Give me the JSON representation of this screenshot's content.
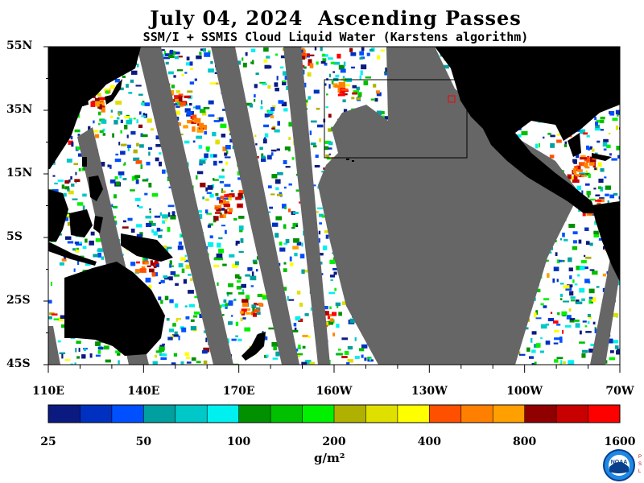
{
  "header": {
    "title": "July 04, 2024  Ascending Passes",
    "subtitle": "SSM/I + SSMIS Cloud Liquid Water (Karstens algorithm)"
  },
  "map": {
    "lat_labels": [
      "55N",
      "35N",
      "15N",
      "5S",
      "25S",
      "45S"
    ],
    "lon_labels": [
      "110E",
      "140E",
      "170E",
      "160W",
      "130W",
      "100W",
      "70W"
    ],
    "land_color": "#000000",
    "no_data_color": "#666666",
    "clear_sky_color": "#ffffff"
  },
  "colorbar": {
    "labels": [
      "25",
      "50",
      "100",
      "200",
      "400",
      "800",
      "1600"
    ],
    "units": "g/m²",
    "colors": [
      "#0a1a80",
      "#0030c0",
      "#0050ff",
      "#00a0a0",
      "#00c8c8",
      "#00f0f0",
      "#009000",
      "#00c000",
      "#00f000",
      "#b0b000",
      "#e0e000",
      "#ffff00",
      "#ff5000",
      "#ff8000",
      "#ffa000",
      "#900000",
      "#c80000",
      "#ff0000"
    ]
  },
  "logo": {
    "icon": "noaa-logo-icon",
    "text": "NOAA",
    "side_text": "PSL"
  }
}
